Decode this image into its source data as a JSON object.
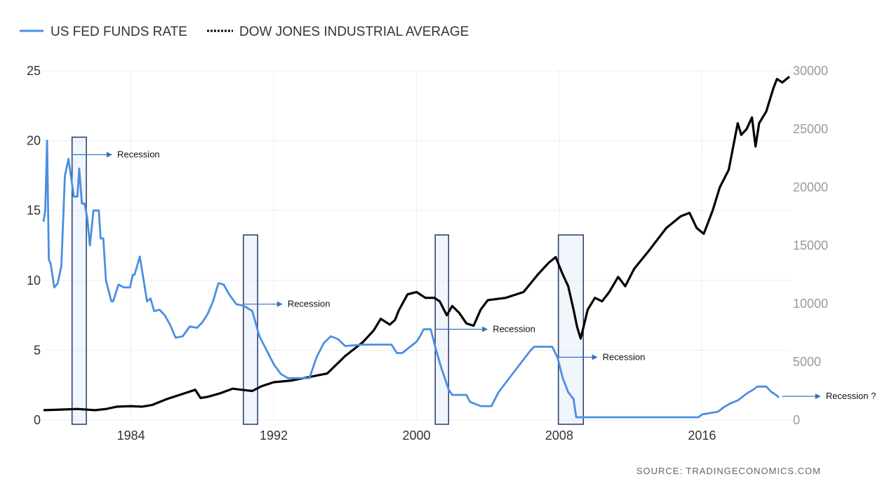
{
  "chart_data": {
    "type": "line",
    "title": "",
    "xlabel": "",
    "ylabel": "",
    "x_ticks": [
      "1984",
      "1992",
      "2000",
      "2008",
      "2016"
    ],
    "x_tick_years": [
      1984,
      1992,
      2000,
      2008,
      2016
    ],
    "xlim": [
      1979.1,
      2020.9
    ],
    "y_left_ticks": [
      "0",
      "5",
      "10",
      "15",
      "20",
      "25"
    ],
    "y_left_lim": [
      0,
      25
    ],
    "y_right_ticks": [
      "0",
      "5000",
      "10000",
      "15000",
      "20000",
      "25000",
      "30000"
    ],
    "y_right_lim": [
      0,
      30000
    ],
    "grid": "dotted",
    "legend_position": "top-left",
    "series": [
      {
        "name": "US FED FUNDS RATE",
        "axis": "left",
        "color": "#4a8fe0",
        "style": "solid",
        "x": [
          1979.1,
          1979.2,
          1979.3,
          1979.4,
          1979.5,
          1979.7,
          1979.9,
          1980.1,
          1980.3,
          1980.5,
          1980.8,
          1981.0,
          1981.1,
          1981.25,
          1981.4,
          1981.55,
          1981.7,
          1981.9,
          1982.2,
          1982.3,
          1982.45,
          1982.6,
          1982.8,
          1982.9,
          1983.0,
          1983.3,
          1983.6,
          1983.8,
          1983.95,
          1984.1,
          1984.2,
          1984.5,
          1984.9,
          1985.1,
          1985.3,
          1985.6,
          1985.9,
          1986.2,
          1986.5,
          1986.9,
          1987.3,
          1987.7,
          1988.0,
          1988.3,
          1988.6,
          1988.9,
          1989.2,
          1989.5,
          1989.9,
          1990.3,
          1990.8,
          1991.2,
          1991.6,
          1992.0,
          1992.4,
          1992.8,
          1993.2,
          1994.0,
          1994.4,
          1994.8,
          1995.2,
          1995.6,
          1996.0,
          1997.0,
          1998.6,
          1998.9,
          1999.2,
          1999.6,
          2000.0,
          2000.2,
          2000.4,
          2000.8,
          2001.1,
          2001.4,
          2001.8,
          2002.0,
          2002.8,
          2003.0,
          2003.6,
          2004.2,
          2004.6,
          2005.2,
          2005.8,
          2006.4,
          2006.6,
          2007.2,
          2007.6,
          2007.9,
          2008.2,
          2008.5,
          2008.8,
          2008.95,
          2009.2,
          2010.0,
          2012.0,
          2014.0,
          2015.8,
          2016.0,
          2016.9,
          2017.2,
          2017.6,
          2018.0,
          2018.5,
          2018.9,
          2019.1,
          2019.6,
          2019.9,
          2020.2,
          2020.3
        ],
        "y": [
          14.2,
          15.0,
          20.0,
          11.5,
          11.2,
          9.5,
          9.8,
          11.0,
          17.5,
          18.7,
          16.0,
          16.0,
          18.0,
          15.5,
          15.5,
          14.5,
          12.5,
          15.0,
          15.0,
          13.0,
          13.0,
          10.0,
          9.0,
          8.5,
          8.5,
          9.7,
          9.5,
          9.5,
          9.5,
          10.4,
          10.4,
          11.7,
          8.5,
          8.7,
          7.8,
          7.9,
          7.5,
          6.8,
          5.9,
          6.0,
          6.7,
          6.6,
          7.0,
          7.6,
          8.5,
          9.8,
          9.7,
          9.0,
          8.3,
          8.2,
          7.8,
          6.0,
          5.0,
          4.0,
          3.3,
          3.0,
          3.0,
          3.0,
          4.5,
          5.5,
          6.0,
          5.8,
          5.3,
          5.4,
          5.4,
          4.8,
          4.8,
          5.2,
          5.6,
          6.0,
          6.5,
          6.5,
          5.0,
          3.7,
          2.2,
          1.8,
          1.8,
          1.3,
          1.0,
          1.0,
          2.0,
          3.0,
          4.0,
          5.0,
          5.25,
          5.25,
          5.25,
          4.5,
          3.0,
          2.0,
          1.5,
          0.2,
          0.2,
          0.2,
          0.2,
          0.2,
          0.2,
          0.4,
          0.6,
          0.9,
          1.2,
          1.4,
          1.9,
          2.2,
          2.4,
          2.4,
          2.0,
          1.75,
          1.6
        ]
      },
      {
        "name": "DOW JONES INDUSTRIAL AVERAGE",
        "axis": "right",
        "color": "#000000",
        "style": "dotted",
        "x": [
          1979.1,
          1980.0,
          1981.0,
          1982.0,
          1982.6,
          1983.2,
          1984.0,
          1984.6,
          1985.2,
          1986.0,
          1986.8,
          1987.6,
          1987.9,
          1988.3,
          1989.0,
          1989.7,
          1990.2,
          1990.8,
          1991.3,
          1992.0,
          1993.0,
          1994.0,
          1995.0,
          1996.0,
          1997.0,
          1997.6,
          1998.0,
          1998.5,
          1998.8,
          1999.0,
          1999.5,
          2000.0,
          2000.5,
          2001.0,
          2001.3,
          2001.7,
          2002.0,
          2002.4,
          2002.8,
          2003.2,
          2003.6,
          2004.0,
          2005.0,
          2006.0,
          2006.8,
          2007.4,
          2007.8,
          2008.2,
          2008.5,
          2008.8,
          2009.0,
          2009.2,
          2009.6,
          2010.0,
          2010.4,
          2010.8,
          2011.3,
          2011.7,
          2012.2,
          2013.0,
          2014.0,
          2014.8,
          2015.3,
          2015.7,
          2016.1,
          2016.6,
          2017.0,
          2017.5,
          2018.0,
          2018.2,
          2018.5,
          2018.8,
          2019.0,
          2019.2,
          2019.6,
          2020.0,
          2020.2,
          2020.5,
          2020.9
        ],
        "y": [
          850,
          900,
          950,
          850,
          950,
          1150,
          1200,
          1150,
          1300,
          1800,
          2200,
          2600,
          1900,
          2000,
          2300,
          2700,
          2600,
          2500,
          2900,
          3250,
          3400,
          3700,
          4000,
          5500,
          6700,
          7700,
          8700,
          8200,
          8600,
          9400,
          10800,
          11000,
          10500,
          10500,
          10200,
          9000,
          9800,
          9200,
          8300,
          8100,
          9500,
          10300,
          10500,
          11000,
          12500,
          13500,
          14000,
          12500,
          11500,
          9500,
          8000,
          7000,
          9500,
          10500,
          10200,
          11000,
          12300,
          11500,
          13000,
          14500,
          16500,
          17500,
          17800,
          16500,
          16000,
          18000,
          20000,
          21500,
          25500,
          24500,
          25000,
          26000,
          23500,
          25500,
          26500,
          28500,
          29300,
          29000,
          29500
        ]
      }
    ],
    "recession_bands": [
      {
        "start": 1980.7,
        "end": 1981.5
      },
      {
        "start": 1990.3,
        "end": 1991.1
      },
      {
        "start": 2001.05,
        "end": 2001.8
      },
      {
        "start": 2007.95,
        "end": 2009.35
      }
    ],
    "annotations": [
      {
        "text": "Recession",
        "year": 1980.75,
        "value": 19.0
      },
      {
        "text": "Recession",
        "year": 1990.3,
        "value": 8.3
      },
      {
        "text": "Recession",
        "year": 2001.05,
        "value": 6.5
      },
      {
        "text": "Recession",
        "year": 2007.95,
        "value": 4.5
      },
      {
        "text": "Recession ?",
        "year": 2020.5,
        "value": 1.7
      }
    ],
    "source": "SOURCE:  TRADINGECONOMICS.COM"
  }
}
